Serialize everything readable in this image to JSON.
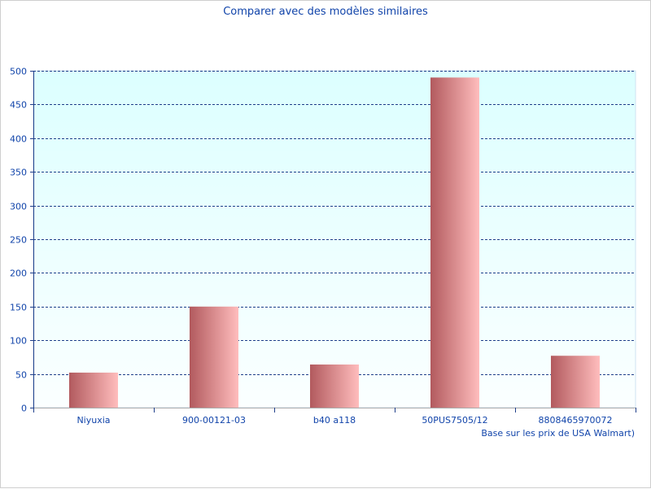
{
  "chart_data": {
    "type": "bar",
    "title": "Comparer avec des modèles similaires",
    "categories": [
      "Niyuxia",
      "900-00121-03",
      "b40 a118",
      "50PUS7505/12",
      "8808465970072"
    ],
    "values": [
      52,
      150,
      64,
      490,
      77
    ],
    "ylim": [
      0,
      500
    ],
    "y_ticks": [
      0,
      50,
      100,
      150,
      200,
      250,
      300,
      350,
      400,
      450,
      500
    ],
    "y_tick_labels": [
      "0",
      "50",
      "100",
      "150",
      "200",
      "250",
      "300",
      "350",
      "400",
      "450",
      "500"
    ],
    "grid": true,
    "grid_style": "dashed",
    "note": "Base sur les prix de USA Walmart)",
    "colors": {
      "text": "#1144aa",
      "grid": "#1f3f8a",
      "axis": "#aaaaaa",
      "plot_bg_top": "#dcffff",
      "plot_bg_bottom": "#fbffff",
      "bar_dark": "#b25a5e",
      "bar_light": "#ffbdbd"
    }
  }
}
